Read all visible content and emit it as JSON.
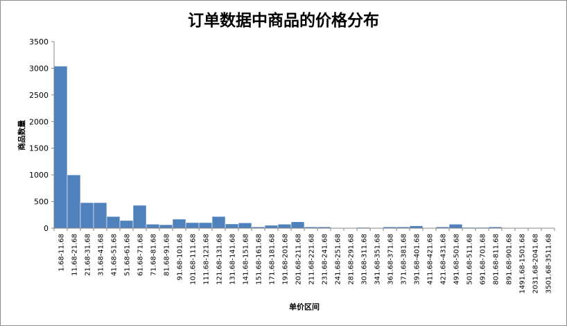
{
  "chart_data": {
    "type": "bar",
    "title": "订单数据中商品的价格分布",
    "xlabel": "单价区间",
    "ylabel": "商品数量",
    "ylim": [
      0,
      3500
    ],
    "yticks": [
      0,
      500,
      1000,
      1500,
      2000,
      2500,
      3000,
      3500
    ],
    "grid": false,
    "color": "#4f81bd",
    "categories": [
      "1.68-11.68",
      "11.68-21.68",
      "21.68-31.68",
      "31.68-41.68",
      "41.68-51.68",
      "51.68-61.68",
      "61.68-71.68",
      "71.68-81.68",
      "81.68-91.68",
      "91.68-101.68",
      "101.68-111.68",
      "111.68-121.68",
      "121.68-131.68",
      "131.68-141.68",
      "141.68-151.68",
      "151.68-161.68",
      "171.68-181.68",
      "191.68-201.68",
      "201.68-211.68",
      "211.68-221.68",
      "231.68-241.68",
      "241.68-251.68",
      "281.68-291.68",
      "301.68-311.68",
      "341.68-351.68",
      "361.68-371.68",
      "371.68-381.68",
      "391.68-401.68",
      "411.68-421.68",
      "421.68-431.68",
      "491.68-501.68",
      "501.68-511.68",
      "691.68-701.68",
      "801.68-811.68",
      "891.68-901.68",
      "1491.68-1501.68",
      "2031.68-2041.68",
      "3501.68-3511.68"
    ],
    "values": [
      3040,
      1000,
      480,
      480,
      220,
      145,
      430,
      75,
      65,
      170,
      105,
      105,
      220,
      80,
      100,
      25,
      55,
      75,
      120,
      25,
      25,
      5,
      5,
      15,
      5,
      25,
      25,
      45,
      5,
      25,
      75,
      15,
      15,
      25,
      5,
      5,
      5,
      5
    ]
  }
}
